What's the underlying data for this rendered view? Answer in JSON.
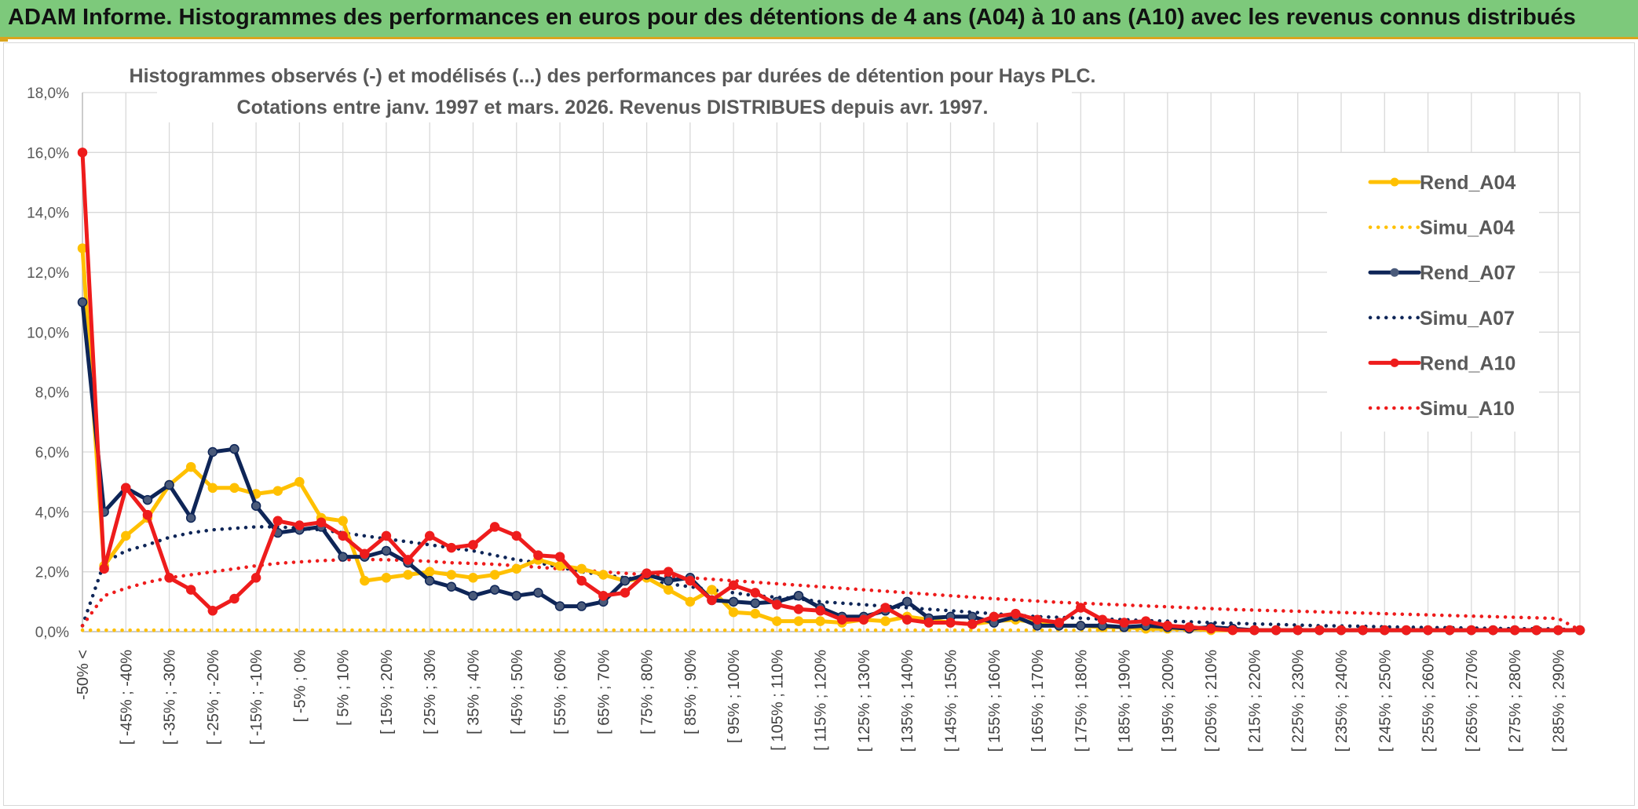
{
  "header": {
    "title": "ADAM Informe. Histogrammes des performances en euros pour des détentions de 4 ans (A04) à 10 ans (A10) avec les revenus connus distribués"
  },
  "chart_data": {
    "type": "line",
    "title_lines": [
      "Histogrammes observés (-) et modélisés (...) des performances par durées de détention pour Hays PLC.",
      "Cotations entre janv. 1997 et mars. 2026. Revenus DISTRIBUES depuis avr. 1997."
    ],
    "xlabel": "",
    "ylabel": "",
    "ylim": [
      0,
      18
    ],
    "y_ticks": [
      "0,0%",
      "2,0%",
      "4,0%",
      "6,0%",
      "8,0%",
      "10,0%",
      "12,0%",
      "14,0%",
      "16,0%",
      "18,0%"
    ],
    "x_tick_labels": [
      "-50% <",
      "[ -45% ; -40%",
      "[ -35% ; -30%",
      "[ -25% ; -20%",
      "[ -15% ; -10%",
      "[ -5% ; 0%",
      "[ 5% ; 10%",
      "[ 15% ; 20%",
      "[ 25% ; 30%",
      "[ 35% ; 40%",
      "[ 45% ; 50%",
      "[ 55% ; 60%",
      "[ 65% ; 70%",
      "[ 75% ; 80%",
      "[ 85% ; 90%",
      "[ 95% ; 100%",
      "[ 105% ; 110%",
      "[ 115% ; 120%",
      "[ 125% ; 130%",
      "[ 135% ; 140%",
      "[ 145% ; 150%",
      "[ 155% ; 160%",
      "[ 165% ; 170%",
      "[ 175% ; 180%",
      "[ 185% ; 190%",
      "[ 195% ; 200%",
      "[ 205% ; 210%",
      "[ 215% ; 220%",
      "[ 225% ; 230%",
      "[ 235% ; 240%",
      "[ 245% ; 250%",
      "[ 255% ; 260%",
      "[ 265% ; 270%",
      "[ 275% ; 280%",
      "[ 285% ; 290%"
    ],
    "n_points": 70,
    "grid": true,
    "legend_position": "right",
    "series": [
      {
        "name": "Rend_A04",
        "style": "solid",
        "color": "#ffc000",
        "markers": true,
        "values": [
          12.8,
          2.2,
          3.2,
          3.8,
          4.9,
          5.5,
          4.8,
          4.8,
          4.6,
          4.7,
          5.0,
          3.8,
          3.7,
          1.7,
          1.8,
          1.9,
          2.0,
          1.9,
          1.8,
          1.9,
          2.1,
          2.4,
          2.2,
          2.1,
          1.9,
          1.7,
          1.8,
          1.4,
          1.0,
          1.4,
          0.65,
          0.6,
          0.35,
          0.35,
          0.35,
          0.3,
          0.4,
          0.35,
          0.5,
          0.4,
          0.3,
          0.25,
          0.35,
          0.4,
          0.3,
          0.2,
          0.2,
          0.15,
          0.15,
          0.1,
          0.1,
          0.1,
          0.05,
          0.05,
          0.05,
          0.05,
          0.05,
          0.05,
          0.05,
          0.05,
          0.05,
          0.05,
          0.05,
          0.05,
          0.05,
          0.05,
          0.05,
          0.05,
          0.05,
          0.05
        ]
      },
      {
        "name": "Simu_A04",
        "style": "dotted",
        "color": "#ffc000",
        "markers": false,
        "values": [
          0.05,
          0.05,
          0.05,
          0.05,
          0.05,
          0.05,
          0.05,
          0.05,
          0.05,
          0.05,
          0.05,
          0.05,
          0.05,
          0.05,
          0.05,
          0.05,
          0.05,
          0.05,
          0.05,
          0.05,
          0.05,
          0.05,
          0.05,
          0.05,
          0.05,
          0.05,
          0.05,
          0.05,
          0.05,
          0.05,
          0.05,
          0.05,
          0.05,
          0.05,
          0.05,
          0.05,
          0.05,
          0.05,
          0.05,
          0.05,
          0.05,
          0.05,
          0.05,
          0.05,
          0.05,
          0.05,
          0.05,
          0.05,
          0.05,
          0.05,
          0.05,
          0.05,
          0.05,
          0.05,
          0.05,
          0.05,
          0.05,
          0.05,
          0.05,
          0.05,
          0.05,
          0.05,
          0.05,
          0.05,
          0.05,
          0.05,
          0.05,
          0.05,
          0.05,
          0.05
        ]
      },
      {
        "name": "Rend_A07",
        "style": "solid",
        "color": "#0e2557",
        "markers": true,
        "values": [
          11.0,
          4.0,
          4.8,
          4.4,
          4.9,
          3.8,
          6.0,
          6.1,
          4.2,
          3.3,
          3.4,
          3.5,
          2.5,
          2.5,
          2.7,
          2.3,
          1.7,
          1.5,
          1.2,
          1.4,
          1.2,
          1.3,
          0.85,
          0.85,
          1.0,
          1.7,
          1.9,
          1.7,
          1.8,
          1.05,
          1.0,
          0.95,
          1.0,
          1.2,
          0.8,
          0.5,
          0.5,
          0.7,
          1.0,
          0.45,
          0.5,
          0.5,
          0.3,
          0.5,
          0.2,
          0.2,
          0.2,
          0.2,
          0.15,
          0.2,
          0.15,
          0.1,
          0.15,
          0.1,
          0.05,
          0.05,
          0.05,
          0.05,
          0.05,
          0.05,
          0.05,
          0.05,
          0.05,
          0.05,
          0.05,
          0.05,
          0.05,
          0.05,
          0.05,
          0.05
        ]
      },
      {
        "name": "Simu_A07",
        "style": "dotted",
        "color": "#0e2557",
        "markers": false,
        "values": [
          0.2,
          2.3,
          2.7,
          2.9,
          3.15,
          3.3,
          3.4,
          3.45,
          3.5,
          3.5,
          3.45,
          3.4,
          3.3,
          3.2,
          3.1,
          3.0,
          2.9,
          2.8,
          2.7,
          2.55,
          2.4,
          2.3,
          2.15,
          2.0,
          1.9,
          1.8,
          1.7,
          1.6,
          1.5,
          1.4,
          1.3,
          1.2,
          1.15,
          1.1,
          1.0,
          0.95,
          0.9,
          0.85,
          0.8,
          0.75,
          0.7,
          0.65,
          0.6,
          0.55,
          0.5,
          0.48,
          0.45,
          0.42,
          0.4,
          0.37,
          0.35,
          0.33,
          0.3,
          0.28,
          0.26,
          0.24,
          0.22,
          0.2,
          0.19,
          0.18,
          0.16,
          0.15,
          0.14,
          0.13,
          0.12,
          0.11,
          0.1,
          0.1,
          0.09,
          0.05
        ]
      },
      {
        "name": "Rend_A10",
        "style": "solid",
        "color": "#ee1c1c",
        "markers": true,
        "values": [
          16.0,
          2.1,
          4.8,
          3.9,
          1.8,
          1.4,
          0.7,
          1.1,
          1.8,
          3.7,
          3.55,
          3.65,
          3.2,
          2.6,
          3.2,
          2.4,
          3.2,
          2.8,
          2.9,
          3.5,
          3.2,
          2.55,
          2.5,
          1.7,
          1.2,
          1.3,
          1.95,
          2.0,
          1.7,
          1.05,
          1.55,
          1.3,
          0.9,
          0.75,
          0.7,
          0.4,
          0.4,
          0.8,
          0.4,
          0.3,
          0.3,
          0.25,
          0.5,
          0.6,
          0.4,
          0.3,
          0.8,
          0.4,
          0.3,
          0.35,
          0.2,
          0.15,
          0.1,
          0.05,
          0.05,
          0.05,
          0.05,
          0.05,
          0.05,
          0.05,
          0.05,
          0.05,
          0.05,
          0.05,
          0.05,
          0.05,
          0.05,
          0.05,
          0.05,
          0.05
        ]
      },
      {
        "name": "Simu_A10",
        "style": "dotted",
        "color": "#ee1c1c",
        "markers": false,
        "values": [
          0.2,
          1.2,
          1.45,
          1.65,
          1.8,
          1.9,
          2.0,
          2.1,
          2.2,
          2.28,
          2.33,
          2.37,
          2.4,
          2.41,
          2.4,
          2.38,
          2.35,
          2.3,
          2.28,
          2.25,
          2.2,
          2.15,
          2.1,
          2.05,
          2.0,
          1.95,
          1.9,
          1.85,
          1.8,
          1.75,
          1.7,
          1.65,
          1.6,
          1.55,
          1.5,
          1.45,
          1.4,
          1.35,
          1.3,
          1.25,
          1.2,
          1.15,
          1.1,
          1.06,
          1.02,
          0.98,
          0.95,
          0.92,
          0.89,
          0.86,
          0.83,
          0.8,
          0.77,
          0.74,
          0.72,
          0.7,
          0.68,
          0.66,
          0.64,
          0.62,
          0.6,
          0.58,
          0.56,
          0.54,
          0.52,
          0.5,
          0.48,
          0.46,
          0.44,
          0.05
        ]
      }
    ]
  }
}
